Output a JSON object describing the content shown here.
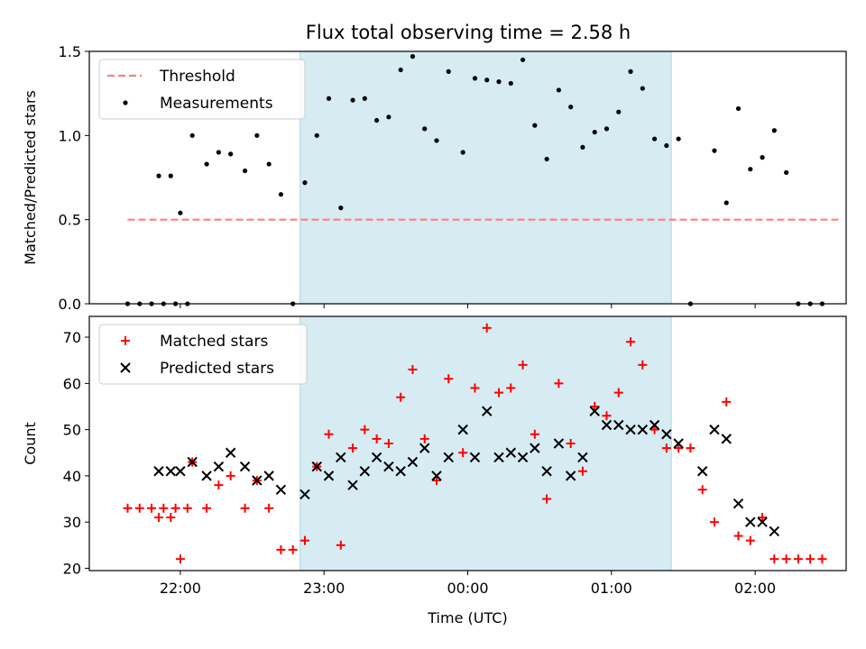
{
  "title": "Flux total observing time = 2.58 h",
  "colors": {
    "threshold": "#ff7f7f",
    "measurement": "#000000",
    "matched": "#ff0000",
    "predicted": "#000000",
    "span": "#add8e6"
  },
  "chart_data": [
    {
      "type": "scatter",
      "ylabel": "Matched/Predicted stars",
      "ylim": [
        0,
        1.5
      ],
      "yticks": [
        0,
        0.5,
        1.0,
        1.5
      ],
      "ytick_labels": [
        "0.0",
        "0.5",
        "1.0",
        "1.5"
      ],
      "xlim": [
        "21:22",
        "02:38"
      ],
      "xticks": [
        "22:00",
        "23:00",
        "00:00",
        "01:00",
        "02:00"
      ],
      "highlight_span": [
        "22:50",
        "01:25"
      ],
      "legend": "top-left",
      "legend_entries": [
        "Threshold",
        "Measurements"
      ],
      "threshold": {
        "name": "Threshold",
        "y": 0.5,
        "x_range": [
          "21:38",
          "02:36"
        ]
      },
      "series": [
        {
          "name": "Measurements",
          "points": [
            [
              "21:38",
              0
            ],
            [
              "21:43",
              0
            ],
            [
              "21:48",
              0
            ],
            [
              "21:53",
              0
            ],
            [
              "21:58",
              0
            ],
            [
              "22:03",
              0
            ],
            [
              "21:51",
              0.76
            ],
            [
              "21:56",
              0.76
            ],
            [
              "22:00",
              0.54
            ],
            [
              "22:05",
              1.0
            ],
            [
              "22:11",
              0.83
            ],
            [
              "22:16",
              0.9
            ],
            [
              "22:21",
              0.89
            ],
            [
              "22:27",
              0.79
            ],
            [
              "22:32",
              1.0
            ],
            [
              "22:37",
              0.83
            ],
            [
              "22:42",
              0.65
            ],
            [
              "22:47",
              0.0
            ],
            [
              "22:52",
              0.72
            ],
            [
              "22:57",
              1.0
            ],
            [
              "23:02",
              1.22
            ],
            [
              "23:07",
              0.57
            ],
            [
              "23:12",
              1.21
            ],
            [
              "23:17",
              1.22
            ],
            [
              "23:22",
              1.09
            ],
            [
              "23:27",
              1.11
            ],
            [
              "23:32",
              1.39
            ],
            [
              "23:37",
              1.47
            ],
            [
              "23:42",
              1.04
            ],
            [
              "23:47",
              0.97
            ],
            [
              "23:52",
              1.38
            ],
            [
              "23:58",
              0.9
            ],
            [
              "00:03",
              1.34
            ],
            [
              "00:08",
              1.33
            ],
            [
              "00:13",
              1.32
            ],
            [
              "00:18",
              1.31
            ],
            [
              "00:23",
              1.45
            ],
            [
              "00:28",
              1.06
            ],
            [
              "00:33",
              0.86
            ],
            [
              "00:38",
              1.27
            ],
            [
              "00:43",
              1.17
            ],
            [
              "00:48",
              0.93
            ],
            [
              "00:53",
              1.02
            ],
            [
              "00:58",
              1.04
            ],
            [
              "01:03",
              1.14
            ],
            [
              "01:08",
              1.38
            ],
            [
              "01:13",
              1.28
            ],
            [
              "01:18",
              0.98
            ],
            [
              "01:23",
              0.94
            ],
            [
              "01:28",
              0.98
            ],
            [
              "01:33",
              0.0
            ],
            [
              "01:43",
              0.91
            ],
            [
              "01:48",
              0.6
            ],
            [
              "01:53",
              1.16
            ],
            [
              "01:58",
              0.8
            ],
            [
              "02:03",
              0.87
            ],
            [
              "02:08",
              1.03
            ],
            [
              "02:13",
              0.78
            ],
            [
              "02:18",
              0.0
            ],
            [
              "02:23",
              0.0
            ],
            [
              "02:28",
              0.0
            ]
          ]
        }
      ]
    },
    {
      "type": "scatter",
      "ylabel": "Count",
      "xlabel": "Time (UTC)",
      "ylim": [
        19.5,
        74.5
      ],
      "yticks": [
        20,
        30,
        40,
        50,
        60,
        70
      ],
      "ytick_labels": [
        "20",
        "30",
        "40",
        "50",
        "60",
        "70"
      ],
      "xlim": [
        "21:22",
        "02:38"
      ],
      "xticks": [
        "22:00",
        "23:00",
        "00:00",
        "01:00",
        "02:00"
      ],
      "xtick_labels": [
        "22:00",
        "23:00",
        "00:00",
        "01:00",
        "02:00"
      ],
      "highlight_span": [
        "22:50",
        "01:25"
      ],
      "legend": "top-left",
      "legend_entries": [
        "Matched stars",
        "Predicted stars"
      ],
      "series": [
        {
          "name": "Matched stars",
          "points": [
            [
              "21:38",
              33
            ],
            [
              "21:43",
              33
            ],
            [
              "21:48",
              33
            ],
            [
              "21:53",
              33
            ],
            [
              "21:58",
              33
            ],
            [
              "22:03",
              33
            ],
            [
              "21:51",
              31
            ],
            [
              "21:56",
              31
            ],
            [
              "22:00",
              22
            ],
            [
              "22:05",
              43
            ],
            [
              "22:11",
              33
            ],
            [
              "22:16",
              38
            ],
            [
              "22:21",
              40
            ],
            [
              "22:27",
              33
            ],
            [
              "22:32",
              39
            ],
            [
              "22:37",
              33
            ],
            [
              "22:42",
              24
            ],
            [
              "22:47",
              24
            ],
            [
              "22:52",
              26
            ],
            [
              "22:57",
              42
            ],
            [
              "23:02",
              49
            ],
            [
              "23:07",
              25
            ],
            [
              "23:12",
              46
            ],
            [
              "23:17",
              50
            ],
            [
              "23:22",
              48
            ],
            [
              "23:27",
              47
            ],
            [
              "23:32",
              57
            ],
            [
              "23:37",
              63
            ],
            [
              "23:42",
              48
            ],
            [
              "23:47",
              39
            ],
            [
              "23:52",
              61
            ],
            [
              "23:58",
              45
            ],
            [
              "00:03",
              59
            ],
            [
              "00:08",
              72
            ],
            [
              "00:13",
              58
            ],
            [
              "00:18",
              59
            ],
            [
              "00:23",
              64
            ],
            [
              "00:28",
              49
            ],
            [
              "00:33",
              35
            ],
            [
              "00:38",
              60
            ],
            [
              "00:43",
              47
            ],
            [
              "00:48",
              41
            ],
            [
              "00:53",
              55
            ],
            [
              "00:58",
              53
            ],
            [
              "01:03",
              58
            ],
            [
              "01:08",
              69
            ],
            [
              "01:13",
              64
            ],
            [
              "01:18",
              50
            ],
            [
              "01:23",
              46
            ],
            [
              "01:28",
              46
            ],
            [
              "01:33",
              46
            ],
            [
              "01:38",
              37
            ],
            [
              "01:43",
              30
            ],
            [
              "01:48",
              56
            ],
            [
              "01:53",
              27
            ],
            [
              "01:58",
              26
            ],
            [
              "02:03",
              31
            ],
            [
              "02:08",
              22
            ],
            [
              "02:13",
              22
            ],
            [
              "02:18",
              22
            ],
            [
              "02:23",
              22
            ],
            [
              "02:28",
              22
            ]
          ]
        },
        {
          "name": "Predicted stars",
          "points": [
            [
              "21:51",
              41
            ],
            [
              "21:56",
              41
            ],
            [
              "22:00",
              41
            ],
            [
              "22:05",
              43
            ],
            [
              "22:11",
              40
            ],
            [
              "22:16",
              42
            ],
            [
              "22:21",
              45
            ],
            [
              "22:27",
              42
            ],
            [
              "22:32",
              39
            ],
            [
              "22:37",
              40
            ],
            [
              "22:42",
              37
            ],
            [
              "22:52",
              36
            ],
            [
              "22:57",
              42
            ],
            [
              "23:02",
              40
            ],
            [
              "23:07",
              44
            ],
            [
              "23:12",
              38
            ],
            [
              "23:17",
              41
            ],
            [
              "23:22",
              44
            ],
            [
              "23:27",
              42
            ],
            [
              "23:32",
              41
            ],
            [
              "23:37",
              43
            ],
            [
              "23:42",
              46
            ],
            [
              "23:47",
              40
            ],
            [
              "23:52",
              44
            ],
            [
              "23:58",
              50
            ],
            [
              "00:03",
              44
            ],
            [
              "00:08",
              54
            ],
            [
              "00:13",
              44
            ],
            [
              "00:18",
              45
            ],
            [
              "00:23",
              44
            ],
            [
              "00:28",
              46
            ],
            [
              "00:33",
              41
            ],
            [
              "00:38",
              47
            ],
            [
              "00:43",
              40
            ],
            [
              "00:48",
              44
            ],
            [
              "00:53",
              54
            ],
            [
              "00:58",
              51
            ],
            [
              "01:03",
              51
            ],
            [
              "01:08",
              50
            ],
            [
              "01:13",
              50
            ],
            [
              "01:18",
              51
            ],
            [
              "01:23",
              49
            ],
            [
              "01:28",
              47
            ],
            [
              "01:38",
              41
            ],
            [
              "01:43",
              50
            ],
            [
              "01:48",
              48
            ],
            [
              "01:53",
              34
            ],
            [
              "01:58",
              30
            ],
            [
              "02:03",
              30
            ],
            [
              "02:08",
              28
            ]
          ]
        }
      ]
    }
  ]
}
